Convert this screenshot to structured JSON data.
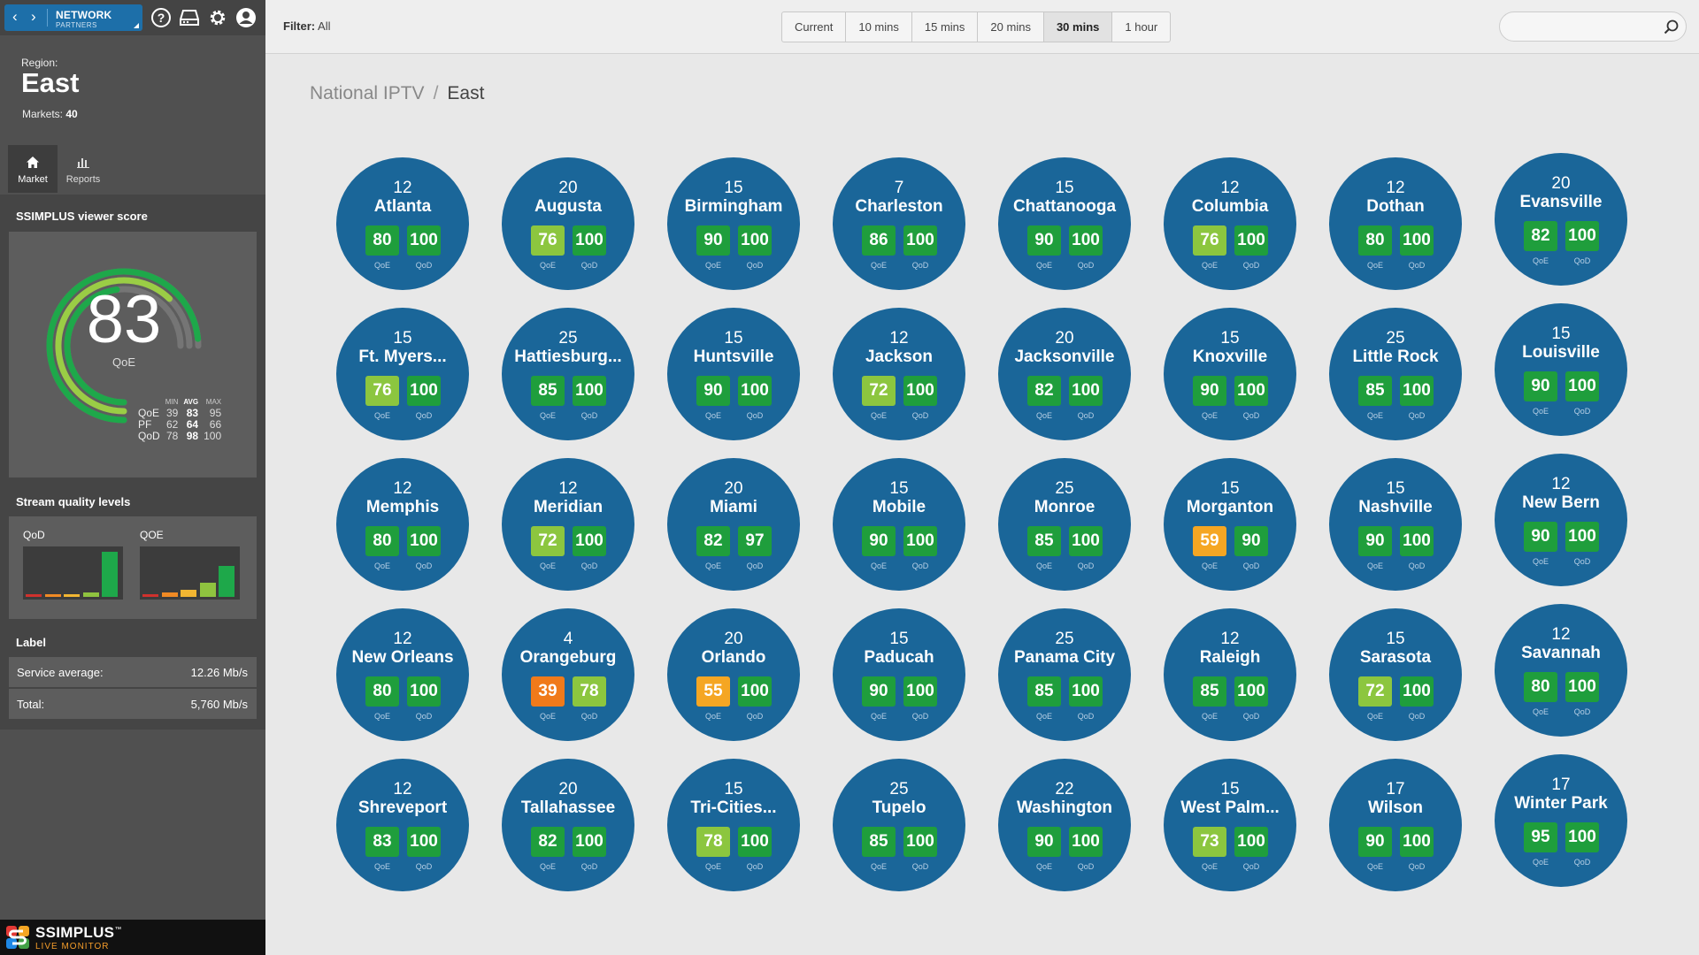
{
  "nav": {
    "brand_line1": "NETWORK",
    "brand_line2": "PARTNERS"
  },
  "header_icons": [
    "help-icon",
    "server-icon",
    "gear-icon",
    "user-icon"
  ],
  "region": {
    "label": "Region:",
    "name": "East",
    "markets_label": "Markets:",
    "markets_count": "40"
  },
  "tabs": [
    {
      "label": "Market",
      "icon": "home-icon",
      "active": true
    },
    {
      "label": "Reports",
      "icon": "bar-chart-icon",
      "active": false
    }
  ],
  "score": {
    "title": "SSIMPLUS viewer score",
    "value": "83",
    "unit": "QoE",
    "headers": {
      "min": "MIN",
      "avg": "AVG",
      "max": "MAX"
    },
    "rows": [
      {
        "label": "QoE",
        "min": "39",
        "avg": "83",
        "max": "95"
      },
      {
        "label": "PF",
        "min": "62",
        "avg": "64",
        "max": "66"
      },
      {
        "label": "QoD",
        "min": "78",
        "avg": "98",
        "max": "100"
      }
    ]
  },
  "stream_quality": {
    "title": "Stream quality levels",
    "charts": [
      {
        "label": "QoD",
        "levels": [
          0.05,
          0.05,
          0.05,
          0.1,
          0.95
        ]
      },
      {
        "label": "QOE",
        "levels": [
          0.05,
          0.1,
          0.15,
          0.3,
          0.65
        ]
      }
    ],
    "level_colors": [
      "#d0312d",
      "#f08a24",
      "#f2b632",
      "#8fc33f",
      "#1ea84a"
    ]
  },
  "label_panel": {
    "title": "Label",
    "service_label": "Service average:",
    "service_value": "12.26 Mb/s",
    "total_label": "Total:",
    "total_value": "5,760 Mb/s"
  },
  "brand": {
    "name": "SSIMPLUS",
    "trademark": "™",
    "sub": "LIVE MONITOR"
  },
  "topbar": {
    "filter_label": "Filter:",
    "filter_value": "All",
    "time_options": [
      "Current",
      "10 mins",
      "15 mins",
      "20 mins",
      "30 mins",
      "1 hour"
    ],
    "time_active": "30 mins",
    "search_placeholder": ""
  },
  "breadcrumb": {
    "root": "National IPTV",
    "separator": "/",
    "current": "East"
  },
  "chip_labels": {
    "qoe": "QoE",
    "qod": "QoD"
  },
  "chip_colors": {
    "good": "#1f9e3c",
    "fair": "#8cc63f",
    "warn": "#f5a623",
    "bad": "#f07a1a",
    "circle": "#1a6699"
  },
  "markets": [
    {
      "name": "Atlanta",
      "count": "12",
      "qoe": 80,
      "qod": 100
    },
    {
      "name": "Augusta",
      "count": "20",
      "qoe": 76,
      "qod": 100
    },
    {
      "name": "Birmingham",
      "count": "15",
      "qoe": 90,
      "qod": 100
    },
    {
      "name": "Charleston",
      "count": "7",
      "qoe": 86,
      "qod": 100
    },
    {
      "name": "Chattanooga",
      "count": "15",
      "qoe": 90,
      "qod": 100
    },
    {
      "name": "Columbia",
      "count": "12",
      "qoe": 76,
      "qod": 100
    },
    {
      "name": "Dothan",
      "count": "12",
      "qoe": 80,
      "qod": 100
    },
    {
      "name": "Evansville",
      "count": "20",
      "qoe": 82,
      "qod": 100
    },
    {
      "name": "Ft. Myers...",
      "count": "15",
      "qoe": 76,
      "qod": 100
    },
    {
      "name": "Hattiesburg...",
      "count": "25",
      "qoe": 85,
      "qod": 100
    },
    {
      "name": "Huntsville",
      "count": "15",
      "qoe": 90,
      "qod": 100
    },
    {
      "name": "Jackson",
      "count": "12",
      "qoe": 72,
      "qod": 100
    },
    {
      "name": "Jacksonville",
      "count": "20",
      "qoe": 82,
      "qod": 100
    },
    {
      "name": "Knoxville",
      "count": "15",
      "qoe": 90,
      "qod": 100
    },
    {
      "name": "Little Rock",
      "count": "25",
      "qoe": 85,
      "qod": 100
    },
    {
      "name": "Louisville",
      "count": "15",
      "qoe": 90,
      "qod": 100
    },
    {
      "name": "Memphis",
      "count": "12",
      "qoe": 80,
      "qod": 100
    },
    {
      "name": "Meridian",
      "count": "12",
      "qoe": 72,
      "qod": 100
    },
    {
      "name": "Miami",
      "count": "20",
      "qoe": 82,
      "qod": 97
    },
    {
      "name": "Mobile",
      "count": "15",
      "qoe": 90,
      "qod": 100
    },
    {
      "name": "Monroe",
      "count": "25",
      "qoe": 85,
      "qod": 100
    },
    {
      "name": "Morganton",
      "count": "15",
      "qoe": 59,
      "qod": 90
    },
    {
      "name": "Nashville",
      "count": "15",
      "qoe": 90,
      "qod": 100
    },
    {
      "name": "New Bern",
      "count": "12",
      "qoe": 90,
      "qod": 100
    },
    {
      "name": "New Orleans",
      "count": "12",
      "qoe": 80,
      "qod": 100
    },
    {
      "name": "Orangeburg",
      "count": "4",
      "qoe": 39,
      "qod": 78
    },
    {
      "name": "Orlando",
      "count": "20",
      "qoe": 55,
      "qod": 100
    },
    {
      "name": "Paducah",
      "count": "15",
      "qoe": 90,
      "qod": 100
    },
    {
      "name": "Panama City",
      "count": "25",
      "qoe": 85,
      "qod": 100
    },
    {
      "name": "Raleigh",
      "count": "12",
      "qoe": 85,
      "qod": 100
    },
    {
      "name": "Sarasota",
      "count": "15",
      "qoe": 72,
      "qod": 100
    },
    {
      "name": "Savannah",
      "count": "12",
      "qoe": 80,
      "qod": 100
    },
    {
      "name": "Shreveport",
      "count": "12",
      "qoe": 83,
      "qod": 100
    },
    {
      "name": "Tallahassee",
      "count": "20",
      "qoe": 82,
      "qod": 100
    },
    {
      "name": "Tri-Cities...",
      "count": "15",
      "qoe": 78,
      "qod": 100
    },
    {
      "name": "Tupelo",
      "count": "25",
      "qoe": 85,
      "qod": 100
    },
    {
      "name": "Washington",
      "count": "22",
      "qoe": 90,
      "qod": 100
    },
    {
      "name": "West Palm...",
      "count": "15",
      "qoe": 73,
      "qod": 100
    },
    {
      "name": "Wilson",
      "count": "17",
      "qoe": 90,
      "qod": 100
    },
    {
      "name": "Winter Park",
      "count": "17",
      "qoe": 95,
      "qod": 100
    }
  ]
}
